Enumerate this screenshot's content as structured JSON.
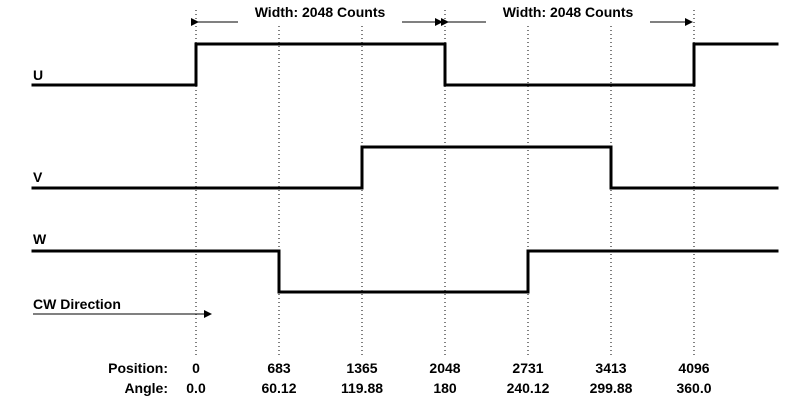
{
  "width_labels": [
    "Width: 2048 Counts",
    "Width: 2048 Counts"
  ],
  "signals": [
    {
      "name": "U",
      "levels": [
        0,
        1,
        1,
        0,
        0,
        1
      ]
    },
    {
      "name": "V",
      "levels": [
        0,
        0,
        1,
        1,
        0,
        0
      ]
    },
    {
      "name": "W",
      "levels": [
        1,
        0,
        0,
        1,
        1,
        1
      ]
    }
  ],
  "direction_label": "CW Direction",
  "position_label": "Position:",
  "angle_label": "Angle:",
  "positions": [
    "0",
    "683",
    "1365",
    "2048",
    "2731",
    "3413",
    "4096"
  ],
  "angles": [
    "0.0",
    "60.12",
    "119.88",
    "180",
    "240.12",
    "299.88",
    "360.0"
  ]
}
